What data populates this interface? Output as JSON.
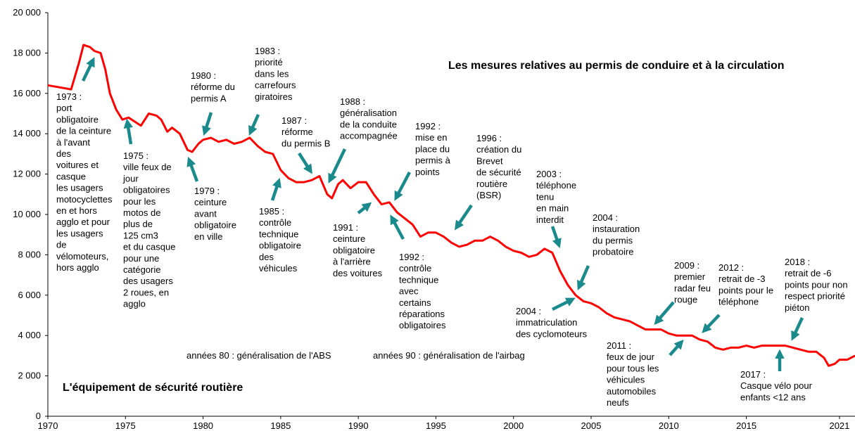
{
  "chart_data": {
    "type": "line",
    "color": "#ff0000",
    "xlim": [
      1970,
      2022
    ],
    "ylim": [
      0,
      20000
    ],
    "xticks": [
      1970,
      1975,
      1980,
      1985,
      1990,
      1995,
      2000,
      2005,
      2010,
      2015,
      2021
    ],
    "yticks": [
      0,
      {
        "value": 2000,
        "label": "2 000"
      },
      {
        "value": 4000,
        "label": "4 000"
      },
      {
        "value": 6000,
        "label": "6 000"
      },
      {
        "value": 8000,
        "label": "8 000"
      },
      {
        "value": 10000,
        "label": "10 000"
      },
      {
        "value": 12000,
        "label": "12 000"
      },
      {
        "value": 14000,
        "label": "14 000"
      },
      {
        "value": 16000,
        "label": "16 000"
      },
      {
        "value": 18000,
        "label": "18 000"
      },
      {
        "value": 20000,
        "label": "20 000"
      }
    ],
    "x": [
      1970,
      1971.5,
      1972,
      1972.3,
      1972.7,
      1973,
      1973.4,
      1973.7,
      1974,
      1974.4,
      1974.8,
      1975.2,
      1975.6,
      1976,
      1976.5,
      1977,
      1977.3,
      1977.7,
      1978,
      1978.5,
      1979,
      1979.3,
      1979.7,
      1980,
      1980.5,
      1981,
      1981.5,
      1982,
      1982.5,
      1983,
      1983.5,
      1984,
      1984.5,
      1985,
      1985.5,
      1986,
      1986.5,
      1987,
      1987.5,
      1988,
      1988.3,
      1988.7,
      1989,
      1989.5,
      1990,
      1990.5,
      1991,
      1991.5,
      1992,
      1992.5,
      1993,
      1993.5,
      1994,
      1994.5,
      1995,
      1995.5,
      1996,
      1996.5,
      1997,
      1997.5,
      1998,
      1998.5,
      1999,
      1999.5,
      2000,
      2000.5,
      2001,
      2001.5,
      2002,
      2002.5,
      2003,
      2003.5,
      2004,
      2004.5,
      2005,
      2005.5,
      2006,
      2006.5,
      2007,
      2007.5,
      2008,
      2008.5,
      2009,
      2009.5,
      2010,
      2010.5,
      2011,
      2011.5,
      2012,
      2012.5,
      2013,
      2013.5,
      2014,
      2014.5,
      2015,
      2015.5,
      2016,
      2016.5,
      2017,
      2017.5,
      2018,
      2018.5,
      2019,
      2019.5,
      2020,
      2020.3,
      2020.7,
      2021,
      2021.5,
      2022
    ],
    "values": [
      16400,
      16200,
      17500,
      18400,
      18300,
      18100,
      18000,
      17200,
      16000,
      15200,
      14700,
      14800,
      14600,
      14400,
      15000,
      14900,
      14700,
      14100,
      14300,
      14000,
      13200,
      13100,
      13500,
      13700,
      13800,
      13600,
      13700,
      13500,
      13600,
      13800,
      13400,
      13100,
      13000,
      12200,
      11800,
      11600,
      11600,
      11700,
      11900,
      11000,
      10800,
      11500,
      11700,
      11300,
      11600,
      11600,
      11000,
      10500,
      10600,
      10100,
      9800,
      9500,
      8900,
      9100,
      9100,
      8900,
      8600,
      8400,
      8500,
      8700,
      8700,
      8900,
      8700,
      8400,
      8200,
      8100,
      7900,
      8000,
      8300,
      8100,
      7200,
      6500,
      6000,
      5700,
      5600,
      5400,
      5100,
      4900,
      4800,
      4700,
      4500,
      4300,
      4300,
      4300,
      4100,
      4000,
      4000,
      4000,
      3800,
      3700,
      3400,
      3300,
      3400,
      3400,
      3500,
      3400,
      3500,
      3500,
      3500,
      3500,
      3400,
      3300,
      3200,
      3200,
      2900,
      2500,
      2600,
      2800,
      2800,
      3000
    ],
    "notes": [
      "Les mesures relatives au permis de conduire et à la circulation",
      "L'équipement de sécurité routière",
      "années 80 : généralisation de l'ABS",
      "années 90 : généralisation de l'airbag"
    ],
    "annotations": [
      {
        "lines": [
          "1973 :",
          "port",
          "obligatoire",
          "de la ceinture",
          "à l'avant",
          "des",
          "voitures et",
          "casque",
          "les usagers",
          "motocyclettes",
          "en et hors",
          "agglo et pour",
          "les usagers",
          "de",
          "vélomoteurs,",
          "hors agglo"
        ]
      },
      {
        "lines": [
          "1975 :",
          "ville feux de",
          "jour",
          "obligatoires",
          "pour les",
          "motos de",
          "plus de",
          "125 cm3",
          "et du casque",
          "pour une",
          "catégorie",
          "des usagers",
          "2 roues, en",
          "agglo"
        ]
      },
      {
        "lines": [
          "1979 :",
          "ceinture",
          "avant",
          "obligatoire",
          "en ville"
        ]
      },
      {
        "lines": [
          "1980 :",
          "réforme du",
          "permis A"
        ]
      },
      {
        "lines": [
          "1983 :",
          "priorité",
          "dans les",
          "carrefours",
          "giratoires"
        ]
      },
      {
        "lines": [
          "1987 :",
          "réforme",
          "du permis B"
        ]
      },
      {
        "lines": [
          "1985 :",
          "contrôle",
          "technique",
          "obligatoire",
          "des",
          "véhicules"
        ]
      },
      {
        "lines": [
          "1988 :",
          "généralisation",
          "de la conduite",
          "accompagnée"
        ]
      },
      {
        "lines": [
          "1991 :",
          "ceinture",
          "obligatoire",
          "à l'arrière",
          "des voitures"
        ]
      },
      {
        "lines": [
          "1992 :",
          "mise en",
          "place du",
          "permis à",
          "points"
        ]
      },
      {
        "lines": [
          "1992 :",
          "contrôle",
          "technique",
          "avec",
          "certains",
          "réparations",
          "obligatoires"
        ]
      },
      {
        "lines": [
          "1996 :",
          "création du",
          "Brevet",
          "de sécurité",
          "routière",
          "(BSR)"
        ]
      },
      {
        "lines": [
          "2003 :",
          "téléphone",
          "tenu",
          "en main",
          "interdit"
        ]
      },
      {
        "lines": [
          "2004 :",
          "instauration",
          "du permis",
          "probatoire"
        ]
      },
      {
        "lines": [
          "2004 :",
          "immatriculation",
          "des cyclomoteurs"
        ]
      },
      {
        "lines": [
          "2009 :",
          "premier",
          "radar feu",
          "rouge"
        ]
      },
      {
        "lines": [
          "2012 :",
          "retrait de -3",
          "points pour le",
          "téléphone"
        ]
      },
      {
        "lines": [
          "2011 :",
          "feux de jour",
          "pour tous les",
          "véhicules",
          "automobiles",
          "neufs"
        ]
      },
      {
        "lines": [
          "2018 :",
          "retrait de -6",
          "points pour non",
          "respect priorité",
          "piéton"
        ]
      },
      {
        "lines": [
          "2017 :",
          "Casque vélo pour",
          "enfants <12 ans"
        ]
      }
    ]
  }
}
